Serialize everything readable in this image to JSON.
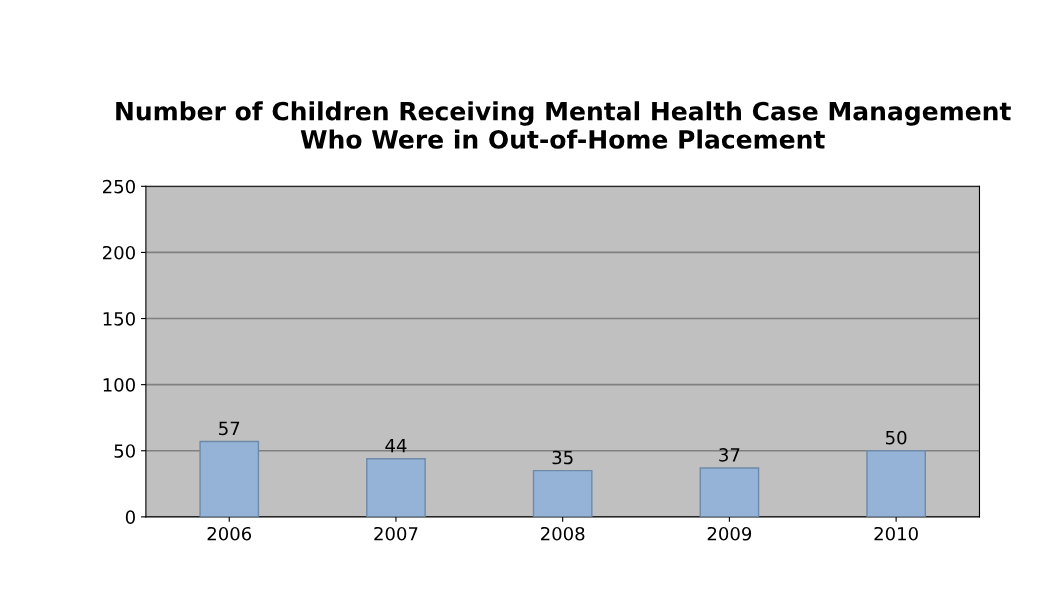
{
  "chart_data": {
    "type": "bar",
    "title": "Number of Children Receiving Mental Health Case Management Who Were in Out-of-Home Placement",
    "categories": [
      "2006",
      "2007",
      "2008",
      "2009",
      "2010"
    ],
    "values": [
      57,
      44,
      35,
      37,
      50
    ],
    "color": "#95b3d7",
    "ylim": [
      0,
      250
    ],
    "yticks": [
      0,
      50,
      100,
      150,
      200,
      250
    ],
    "grid": "y",
    "data_labels": true
  }
}
